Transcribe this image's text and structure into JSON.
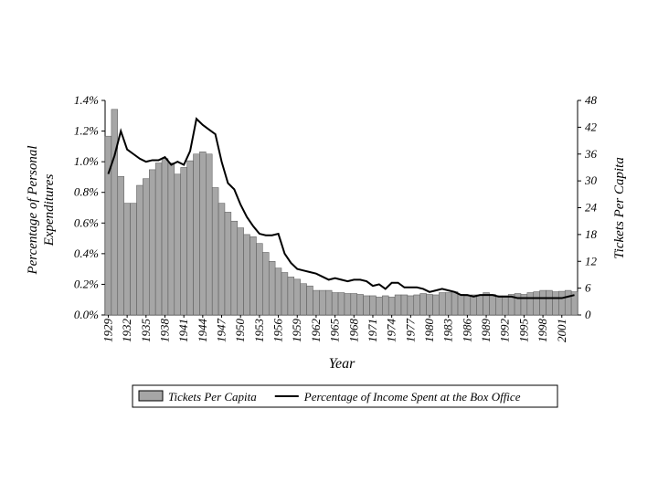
{
  "chart_data": {
    "type": "bar",
    "xlabel": "Year",
    "ylabel": [
      "Percentage of Personal",
      "Expenditures"
    ],
    "y2label": "Tickets Per Capita",
    "categories": [
      "1929",
      null,
      null,
      "1932",
      null,
      null,
      "1935",
      null,
      null,
      "1938",
      null,
      null,
      "1941",
      null,
      null,
      "1944",
      null,
      null,
      "1947",
      null,
      null,
      "1950",
      null,
      null,
      "1953",
      null,
      null,
      "1956",
      null,
      null,
      "1959",
      null,
      null,
      "1962",
      null,
      null,
      "1965",
      null,
      null,
      "1968",
      null,
      null,
      "1971",
      null,
      null,
      "1974",
      null,
      null,
      "1977",
      null,
      null,
      "1980",
      null,
      null,
      "1983",
      null,
      null,
      "1986",
      null,
      null,
      "1989",
      null,
      null,
      "1992",
      null,
      null,
      "1995",
      null,
      null,
      "1998",
      null,
      null,
      "2001",
      null,
      null
    ],
    "ylim": [
      0,
      1.4
    ],
    "yticks": [
      {
        "value": 0,
        "label": "0.0%"
      },
      {
        "value": 0.2,
        "label": "0.2%"
      },
      {
        "value": 0.4,
        "label": "0.4%"
      },
      {
        "value": 0.6,
        "label": "0.6%"
      },
      {
        "value": 0.8,
        "label": "0.8%"
      },
      {
        "value": 1.0,
        "label": "1.0%"
      },
      {
        "value": 1.2,
        "label": "1.2%"
      },
      {
        "value": 1.4,
        "label": "1.4%"
      }
    ],
    "y2lim": [
      0,
      48
    ],
    "y2ticks": [
      0,
      6,
      12,
      18,
      24,
      30,
      36,
      42,
      48
    ],
    "legend": "bottom",
    "series": [
      {
        "name": "Tickets Per Capita",
        "type": "bar",
        "axis": "y2",
        "color": "#a6a6a6",
        "values": [
          40,
          46,
          31,
          25,
          25,
          29,
          30.5,
          32.5,
          34,
          35,
          34,
          31.5,
          33,
          34.5,
          36,
          36.5,
          36,
          28.5,
          25,
          23,
          21,
          19.5,
          18,
          17.5,
          16,
          14,
          12,
          10.5,
          9.5,
          8.5,
          8,
          7,
          6.5,
          5.5,
          5.5,
          5.5,
          5,
          5,
          4.8,
          4.8,
          4.6,
          4.3,
          4.3,
          4,
          4.3,
          4,
          4.5,
          4.5,
          4.3,
          4.5,
          4.8,
          4.6,
          4.5,
          5,
          5,
          5.2,
          4.6,
          4.3,
          4.5,
          4.5,
          5,
          4.6,
          4.3,
          4.3,
          4.6,
          4.8,
          4.6,
          5,
          5.2,
          5.5,
          5.5,
          5.2,
          5.3,
          5.5,
          5.2
        ]
      },
      {
        "name": "Percentage of Income Spent at the Box Office",
        "type": "line",
        "color": "#000000",
        "values": [
          0.92,
          1.04,
          1.2,
          1.08,
          1.05,
          1.02,
          1.0,
          1.01,
          1.01,
          1.03,
          0.98,
          1.0,
          0.98,
          1.07,
          1.28,
          1.24,
          1.21,
          1.18,
          1.0,
          0.86,
          0.82,
          0.72,
          0.64,
          0.58,
          0.53,
          0.52,
          0.52,
          0.53,
          0.4,
          0.34,
          0.3,
          0.29,
          0.28,
          0.27,
          0.25,
          0.23,
          0.24,
          0.23,
          0.22,
          0.23,
          0.23,
          0.22,
          0.19,
          0.2,
          0.17,
          0.21,
          0.21,
          0.18,
          0.18,
          0.18,
          0.17,
          0.15,
          0.16,
          0.17,
          0.16,
          0.15,
          0.13,
          0.13,
          0.12,
          0.13,
          0.13,
          0.13,
          0.12,
          0.12,
          0.12,
          0.11,
          0.11,
          0.11,
          0.11,
          0.11,
          0.11,
          0.11,
          0.11,
          0.12,
          0.13
        ]
      }
    ]
  }
}
